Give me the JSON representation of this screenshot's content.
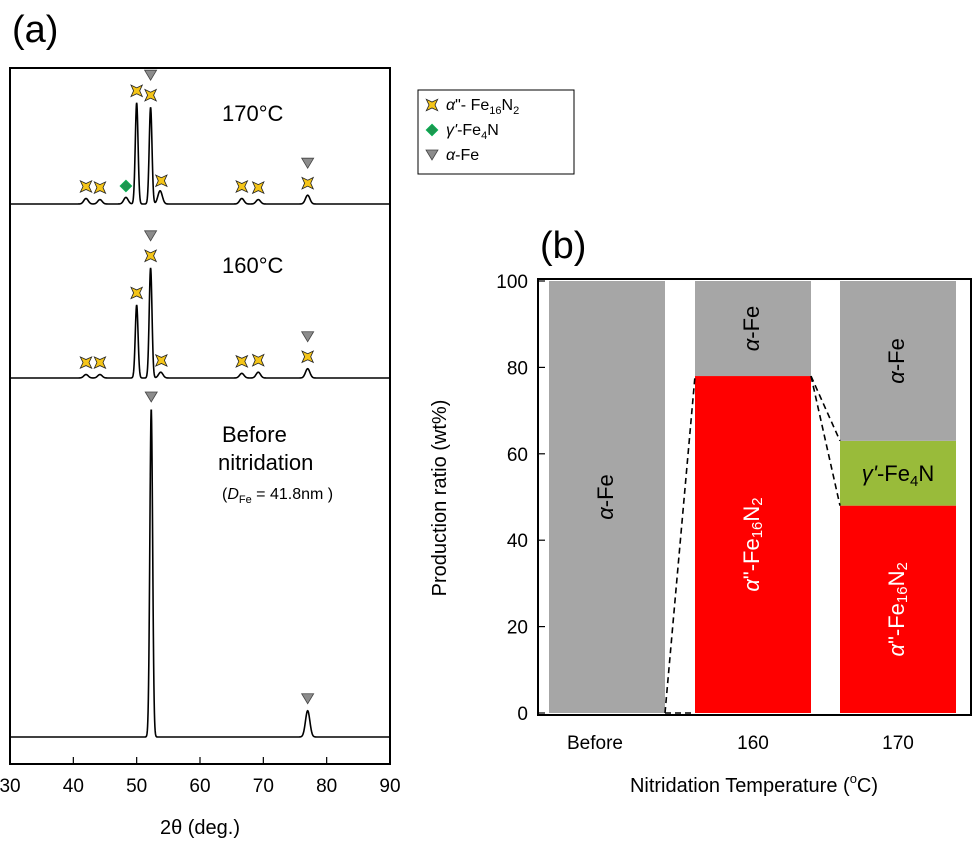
{
  "chart_data": [
    {
      "type": "line",
      "panel_label": "(a)",
      "xlabel": "2θ (deg.)",
      "xlabel_italic": "θ",
      "xlim": [
        30,
        90
      ],
      "xticks": [
        30,
        40,
        50,
        60,
        70,
        80,
        90
      ],
      "grid": false,
      "legend_position": "top-right",
      "legend": [
        {
          "marker": "star",
          "color": "#f5c518",
          "text_italic": "α",
          "text_rest": "\"- Fe",
          "sub1": "16",
          "mid": "N",
          "sub2": "2"
        },
        {
          "marker": "diamond",
          "color": "#1a9850",
          "text_italic": "γ'",
          "text_rest": "-Fe",
          "sub1": "4",
          "mid": "N",
          "sub2": ""
        },
        {
          "marker": "triangle",
          "color": "#8c8c8c",
          "text_italic": "α",
          "text_rest": "-Fe",
          "sub1": "",
          "mid": "",
          "sub2": ""
        }
      ],
      "series": [
        {
          "name": "170°C",
          "peaks": [
            {
              "x": 42.0,
              "h": 0.05
            },
            {
              "x": 44.2,
              "h": 0.04
            },
            {
              "x": 48.3,
              "h": 0.06
            },
            {
              "x": 50.0,
              "h": 0.92
            },
            {
              "x": 52.2,
              "h": 0.88
            },
            {
              "x": 53.7,
              "h": 0.12
            },
            {
              "x": 66.6,
              "h": 0.05
            },
            {
              "x": 69.2,
              "h": 0.04
            },
            {
              "x": 77.0,
              "h": 0.08
            }
          ],
          "markers": [
            {
              "x": 42.0,
              "kind": "star"
            },
            {
              "x": 44.2,
              "kind": "star"
            },
            {
              "x": 48.3,
              "kind": "diamond"
            },
            {
              "x": 50.0,
              "kind": "star"
            },
            {
              "x": 52.2,
              "kind": "star+triangle"
            },
            {
              "x": 53.9,
              "kind": "star"
            },
            {
              "x": 66.6,
              "kind": "star"
            },
            {
              "x": 69.2,
              "kind": "star"
            },
            {
              "x": 77.0,
              "kind": "star+triangle"
            }
          ]
        },
        {
          "name": "160°C",
          "peaks": [
            {
              "x": 42.0,
              "h": 0.03
            },
            {
              "x": 44.2,
              "h": 0.03
            },
            {
              "x": 50.0,
              "h": 0.63
            },
            {
              "x": 52.2,
              "h": 0.95
            },
            {
              "x": 53.8,
              "h": 0.05
            },
            {
              "x": 66.6,
              "h": 0.04
            },
            {
              "x": 69.2,
              "h": 0.05
            },
            {
              "x": 77.0,
              "h": 0.08
            }
          ],
          "markers": [
            {
              "x": 42.0,
              "kind": "star"
            },
            {
              "x": 44.2,
              "kind": "star"
            },
            {
              "x": 50.0,
              "kind": "star"
            },
            {
              "x": 52.2,
              "kind": "star+triangle"
            },
            {
              "x": 53.9,
              "kind": "star"
            },
            {
              "x": 66.6,
              "kind": "star"
            },
            {
              "x": 69.2,
              "kind": "star"
            },
            {
              "x": 77.0,
              "kind": "star+triangle"
            }
          ]
        },
        {
          "name": "Before nitridation",
          "name_line1": "Before",
          "name_line2": "nitridation",
          "note_prefix": "(",
          "note_symbol": "D",
          "note_sub": "Fe",
          "note_rest": " = 41.8nm )",
          "peaks": [
            {
              "x": 52.3,
              "h": 1.0
            },
            {
              "x": 77.0,
              "h": 0.08
            }
          ],
          "markers": [
            {
              "x": 52.3,
              "kind": "triangle"
            },
            {
              "x": 77.0,
              "kind": "triangle"
            }
          ]
        }
      ]
    },
    {
      "type": "bar",
      "stacked": true,
      "panel_label": "(b)",
      "xlabel": "Nitridation Temperature (",
      "xlabel_sup": "o",
      "xlabel_end": "C)",
      "ylabel": "Production ratio (wt%)",
      "ylim": [
        0,
        100
      ],
      "yticks": [
        0,
        20,
        40,
        60,
        80,
        100
      ],
      "categories": [
        "Before",
        "160",
        "170"
      ],
      "series": [
        {
          "name": "α\"-Fe16N2",
          "color": "#ff0000",
          "text_color": "#ffffff",
          "values": [
            0,
            78,
            48
          ]
        },
        {
          "name": "γ'-Fe4N",
          "color": "#99bb3a",
          "text_color": "#000000",
          "values": [
            0,
            0,
            15
          ]
        },
        {
          "name": "α-Fe",
          "color": "#a6a6a6",
          "text_color": "#000000",
          "values": [
            100,
            22,
            37
          ]
        }
      ]
    }
  ]
}
